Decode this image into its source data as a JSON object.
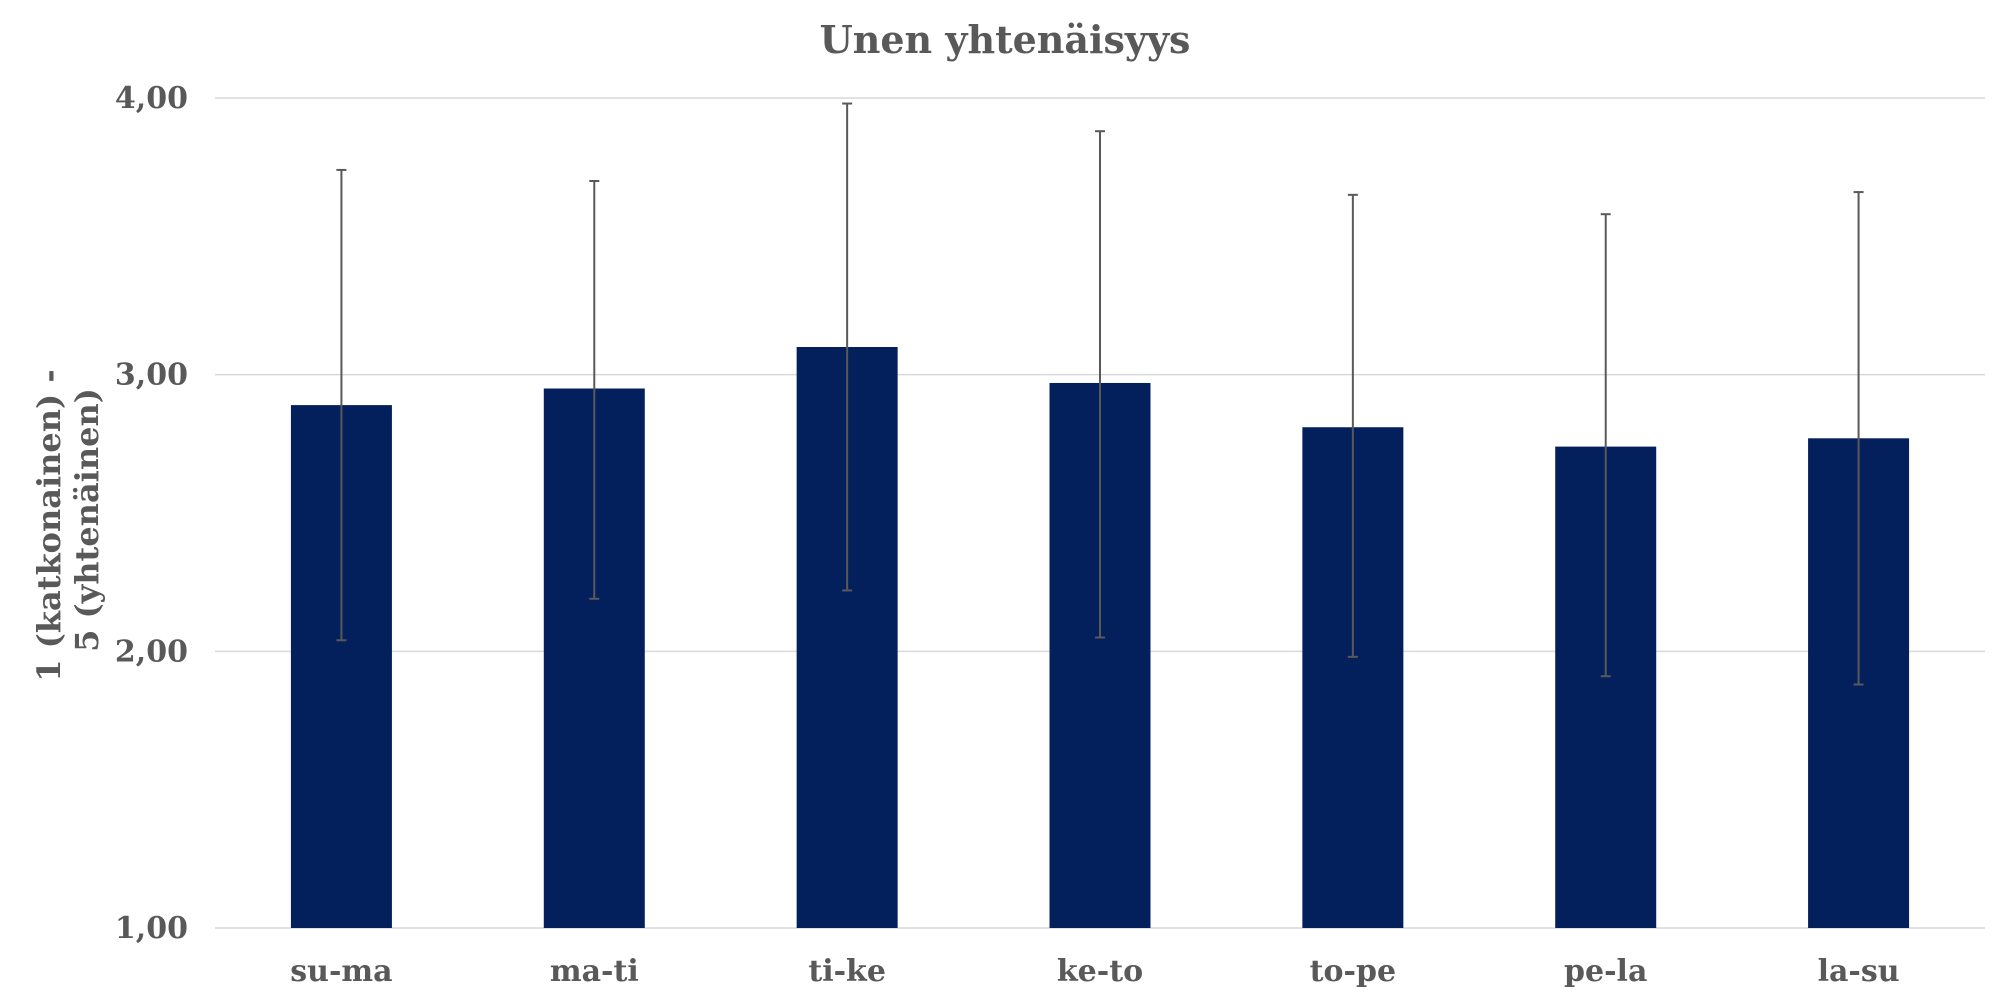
{
  "chart_data": {
    "type": "bar",
    "title": "Unen yhtenäisyys",
    "xlabel": "",
    "ylabel_lines": [
      "1 (katkonainen) -",
      "5 (yhtenäinen)"
    ],
    "categories": [
      "su-ma",
      "ma-ti",
      "ti-ke",
      "ke-to",
      "to-pe",
      "pe-la",
      "la-su"
    ],
    "values": [
      2.89,
      2.95,
      3.1,
      2.97,
      2.81,
      2.74,
      2.77
    ],
    "error_low": [
      2.04,
      2.19,
      2.22,
      2.05,
      1.98,
      1.91,
      1.88
    ],
    "error_high": [
      3.74,
      3.7,
      3.98,
      3.88,
      3.65,
      3.58,
      3.66
    ],
    "ylim": [
      1,
      4
    ],
    "yticks": [
      "1,00",
      "2,00",
      "3,00",
      "4,00"
    ],
    "grid": true,
    "legend": "none",
    "colors": {
      "bar": "#03205C",
      "error_bar": "#595959",
      "grid": "#D9D9D9",
      "text": "#595959"
    }
  }
}
